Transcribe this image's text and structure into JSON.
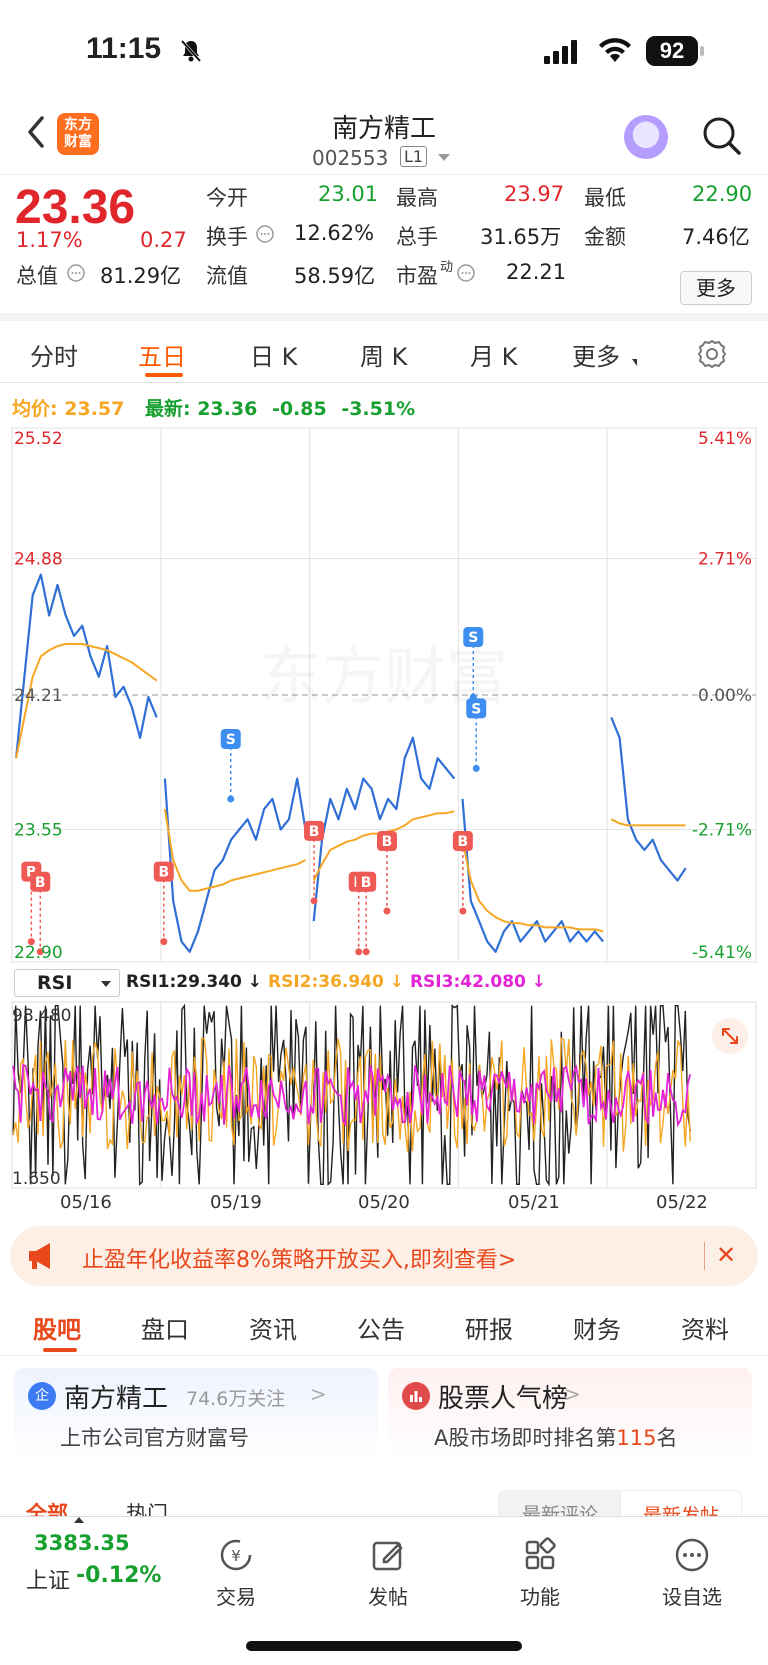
{
  "status_bar": {
    "time": "11:15",
    "battery": "92"
  },
  "header": {
    "title": "南方精工",
    "code": "002553",
    "level_badge": "L1",
    "logo_text": "东方财富"
  },
  "quote": {
    "price": "23.36",
    "change_pct": "1.17%",
    "change_amt": "0.27",
    "fields": [
      {
        "label": "今开",
        "value": "23.01"
      },
      {
        "label": "最高",
        "value": "23.97"
      },
      {
        "label": "最低",
        "value": "22.90"
      },
      {
        "label": "换手",
        "value": "12.62%"
      },
      {
        "label": "总手",
        "value": "31.65万"
      },
      {
        "label": "金额",
        "value": "7.46亿"
      },
      {
        "label": "总值",
        "value": "81.29亿"
      },
      {
        "label": "流值",
        "value": "58.59亿"
      },
      {
        "label": "市盈",
        "value": "22.21"
      }
    ],
    "pe_suffix": "动",
    "more_button": "更多"
  },
  "chart_tabs": [
    "分时",
    "五日",
    "日 K",
    "周 K",
    "月 K",
    "更多"
  ],
  "chart_info": {
    "avg_label": "均价:",
    "avg_value": "23.57",
    "latest_label": "最新:",
    "latest_value": "23.36",
    "change": "-0.85",
    "change_pct": "-3.51%"
  },
  "chart_data": {
    "type": "line",
    "title": "",
    "y_ticks_left": [
      "25.52",
      "24.88",
      "24.21",
      "23.55",
      "22.90"
    ],
    "y_ticks_right": [
      "5.41%",
      "2.71%",
      "0.00%",
      "-2.71%",
      "-5.41%"
    ],
    "ylim": [
      22.9,
      25.52
    ],
    "x_labels": [
      "05/16",
      "05/19",
      "05/20",
      "05/21",
      "05/22"
    ],
    "watermark": "东方财富",
    "series": [
      {
        "name": "价格",
        "color": "#2f6fd6",
        "values": [
          [
            23.9,
            24.3,
            24.7,
            24.8,
            24.6,
            24.75,
            24.6,
            24.5,
            24.55,
            24.4,
            24.3,
            24.45,
            24.2,
            24.25,
            24.15,
            24.0,
            24.2,
            24.1
          ],
          [
            23.8,
            23.2,
            23.0,
            22.95,
            23.05,
            23.2,
            23.35,
            23.4,
            23.5,
            23.55,
            23.6,
            23.5,
            23.65,
            23.7,
            23.55,
            23.6,
            23.8,
            23.55
          ],
          [
            23.1,
            23.5,
            23.7,
            23.6,
            23.75,
            23.65,
            23.8,
            23.75,
            23.6,
            23.7,
            23.65,
            23.9,
            24.0,
            23.8,
            23.75,
            23.9,
            23.85,
            23.8
          ],
          [
            23.7,
            23.2,
            23.1,
            23.0,
            22.95,
            23.05,
            23.1,
            23.0,
            23.05,
            23.1,
            23.0,
            23.05,
            23.1,
            23.0,
            23.05,
            23.0,
            23.05,
            23.0
          ],
          [
            24.1,
            24.0,
            23.6,
            23.5,
            23.45,
            23.5,
            23.4,
            23.35,
            23.3,
            23.36
          ]
        ]
      },
      {
        "name": "均价",
        "color": "#f5a623",
        "values": [
          [
            23.9,
            24.1,
            24.3,
            24.4,
            24.43,
            24.45,
            24.46,
            24.46,
            24.46,
            24.45,
            24.44,
            24.43,
            24.41,
            24.39,
            24.37,
            24.34,
            24.31,
            24.28
          ],
          [
            23.65,
            23.4,
            23.3,
            23.25,
            23.25,
            23.26,
            23.27,
            23.28,
            23.3,
            23.31,
            23.32,
            23.33,
            23.34,
            23.35,
            23.36,
            23.37,
            23.38,
            23.4
          ],
          [
            23.3,
            23.38,
            23.45,
            23.47,
            23.49,
            23.5,
            23.52,
            23.53,
            23.53,
            23.54,
            23.55,
            23.57,
            23.6,
            23.61,
            23.62,
            23.63,
            23.63,
            23.64
          ],
          [
            23.5,
            23.3,
            23.2,
            23.15,
            23.12,
            23.1,
            23.09,
            23.09,
            23.08,
            23.08,
            23.07,
            23.07,
            23.07,
            23.07,
            23.06,
            23.06,
            23.06,
            23.05
          ],
          [
            23.6,
            23.58,
            23.57,
            23.57,
            23.57,
            23.57,
            23.57,
            23.57,
            23.57,
            23.57
          ]
        ]
      }
    ],
    "markers": [
      {
        "label": "B",
        "day": 0.13,
        "value": 23.0
      },
      {
        "label": "B",
        "day": 0.19,
        "value": 22.95
      },
      {
        "label": "B",
        "day": 1.02,
        "value": 23.0
      },
      {
        "label": "S",
        "day": 1.47,
        "value": 23.7
      },
      {
        "label": "B",
        "day": 2.03,
        "value": 23.2
      },
      {
        "label": "B",
        "day": 2.33,
        "value": 22.95
      },
      {
        "label": "B",
        "day": 2.38,
        "value": 22.95
      },
      {
        "label": "B",
        "day": 2.52,
        "value": 23.15
      },
      {
        "label": "S",
        "day": 3.1,
        "value": 24.2
      },
      {
        "label": "S",
        "day": 3.12,
        "value": 23.85
      },
      {
        "label": "B",
        "day": 3.03,
        "value": 23.15
      }
    ]
  },
  "rsi": {
    "selector": "RSI",
    "rsi1": "RSI1:29.340 ↓",
    "rsi2": "RSI2:36.940 ↓",
    "rsi3": "RSI3:42.080 ↓",
    "max_label": "98.480",
    "min_label": "1.650",
    "colors": {
      "rsi1": "#222222",
      "rsi2": "#f5a623",
      "rsi3": "#e323d6"
    }
  },
  "banner": {
    "text": "止盈年化收益率8%策略开放买入,即刻查看>"
  },
  "bottom_tabs": [
    "股吧",
    "盘口",
    "资讯",
    "公告",
    "研报",
    "财务",
    "资料"
  ],
  "cards": [
    {
      "title": "南方精工",
      "meta": "74.6万关注",
      "subtitle": "上市公司官方财富号",
      "badge": "企"
    },
    {
      "title": "股票人气榜",
      "subtitle_prefix": "A股市场即时排名第",
      "rank": "115",
      "subtitle_suffix": "名"
    }
  ],
  "filter": {
    "left": [
      "全部",
      "热门"
    ],
    "right": [
      "最新评论",
      "最新发帖"
    ]
  },
  "bottom_nav": {
    "index_value": "3383.35",
    "index_name": "上证",
    "index_change": "-0.12%",
    "items": [
      "交易",
      "发帖",
      "功能",
      "设自选"
    ]
  },
  "colors": {
    "up": "#e0262b",
    "down": "#179f2f",
    "accent": "#ff5a00"
  }
}
